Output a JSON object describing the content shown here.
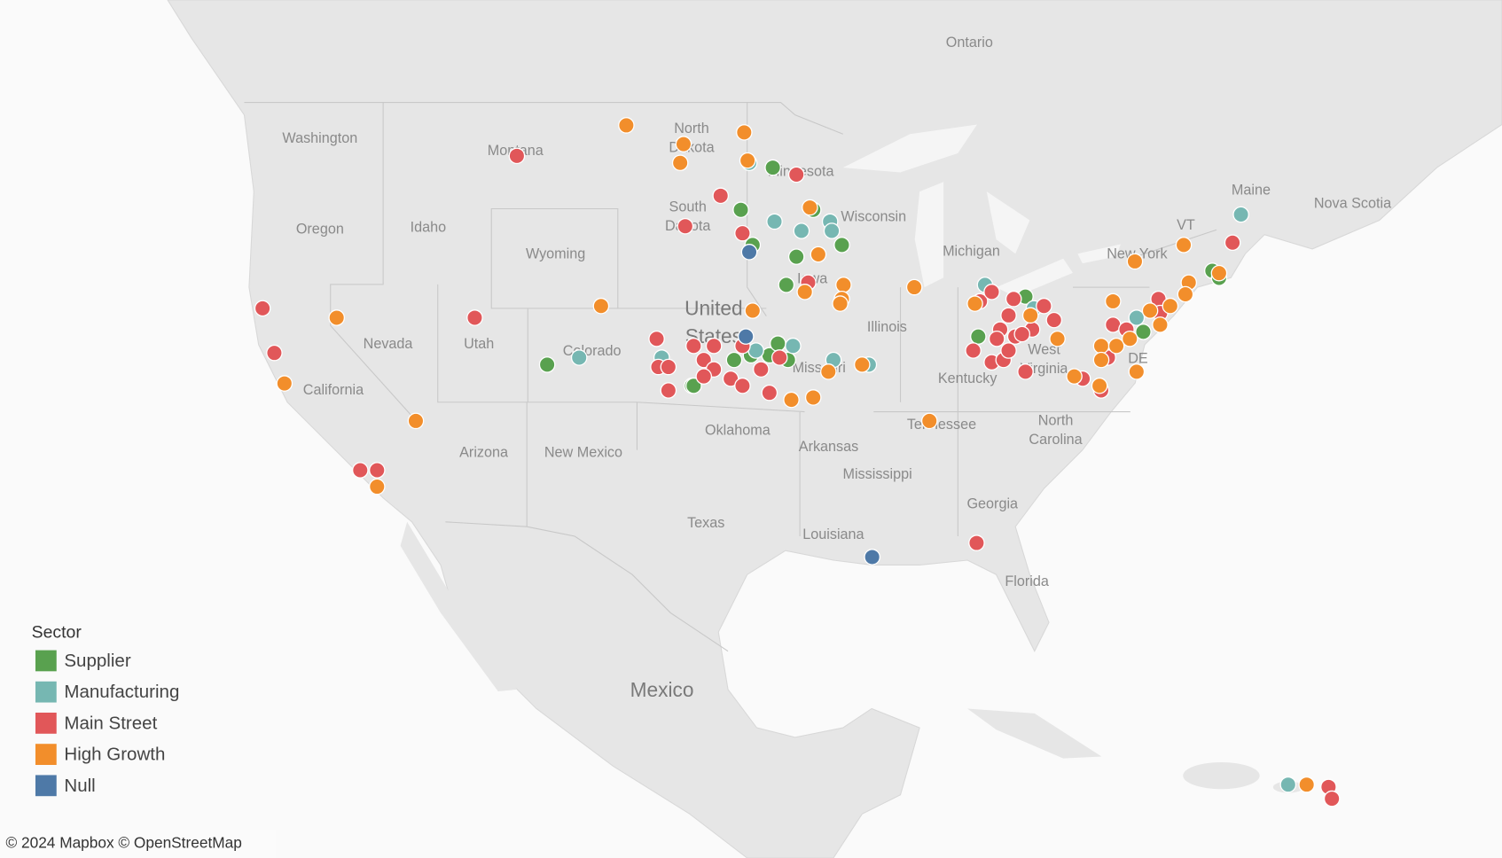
{
  "chart_data": {
    "type": "map",
    "legend_title": "Sector",
    "attribution": "© 2024 Mapbox © OpenStreetMap",
    "map_labels": [
      "Ontario",
      "Washington",
      "Montana",
      "North Dakota",
      "Minnesota",
      "Wisconsin",
      "South Dakota",
      "Oregon",
      "Idaho",
      "Wyoming",
      "Michigan",
      "New York",
      "Maine",
      "Nova Scotia",
      "VT",
      "Iowa",
      "Nevada",
      "Utah",
      "Colorado",
      "United States",
      "Illinois",
      "Missouri",
      "Kentucky",
      "West Virginia",
      "DE",
      "California",
      "Tennessee",
      "North Carolina",
      "Oklahoma",
      "Arkansas",
      "Arizona",
      "New Mexico",
      "Mississippi",
      "Georgia",
      "Texas",
      "Louisiana",
      "Florida",
      "Mexico"
    ],
    "series": [
      {
        "name": "Supplier",
        "color": "#59a14f",
        "lon": [
          -94.5,
          -96.4,
          -95.7,
          -92.1,
          -90.4,
          -93.1,
          -93.7,
          -107.9,
          -96.8,
          -95.8,
          -94.7,
          -94.2,
          -93.6,
          -99.3,
          -79.5,
          -82.3,
          -72.5,
          -68.4,
          -68.0,
          -99.2
        ],
        "lat": [
          47.0,
          45.2,
          43.7,
          45.2,
          43.7,
          43.2,
          42.0,
          38.6,
          38.8,
          39.0,
          39.0,
          39.5,
          38.8,
          37.7,
          41.5,
          39.8,
          40.0,
          42.6,
          42.3,
          37.7
        ]
      },
      {
        "name": "Manufacturing",
        "color": "#76b7b2",
        "lon": [
          -95.9,
          -94.4,
          -92.8,
          -91.1,
          -91.0,
          -106.0,
          -101.1,
          -95.5,
          -93.3,
          -90.9,
          -88.8,
          -81.9,
          -79.0,
          -72.9,
          -66.7,
          -63.9
        ],
        "lat": [
          47.2,
          44.7,
          44.3,
          44.7,
          44.3,
          38.9,
          38.9,
          39.2,
          39.4,
          38.8,
          38.6,
          42.0,
          41.0,
          40.6,
          45.0,
          20.7
        ]
      },
      {
        "name": "Main Street",
        "color": "#e15759",
        "lon": [
          -109.7,
          -93.1,
          -97.6,
          -99.7,
          -96.3,
          -92.4,
          -101.4,
          -101.3,
          -100.7,
          -99.2,
          -98.0,
          -98.6,
          -98.0,
          -98.6,
          -97.0,
          -96.3,
          -95.2,
          -94.1,
          -96.3,
          -100.7,
          -94.7,
          -82.4,
          -124.8,
          -124.1,
          -112.2,
          -119.0,
          -118.0,
          -82.2,
          -81.5,
          -80.2,
          -78.4,
          -80.5,
          -81.0,
          -81.2,
          -80.1,
          -79.1,
          -79.7,
          -82.6,
          -81.5,
          -80.8,
          -80.5,
          -79.5,
          -77.8,
          -76.1,
          -75.0,
          -74.6,
          -74.3,
          -73.5,
          -71.6,
          -71.5,
          -67.2,
          -61.5,
          -61.3
        ],
        "lat": [
          47.5,
          46.7,
          45.8,
          44.5,
          44.2,
          42.1,
          39.7,
          38.5,
          38.5,
          39.4,
          39.4,
          38.8,
          38.4,
          38.1,
          38.0,
          37.7,
          38.4,
          38.9,
          39.4,
          37.5,
          37.4,
          31.0,
          41.0,
          39.1,
          40.6,
          34.1,
          34.1,
          41.3,
          41.7,
          41.4,
          41.1,
          40.7,
          40.1,
          39.7,
          39.8,
          40.1,
          39.9,
          39.2,
          38.7,
          38.8,
          39.2,
          38.3,
          40.5,
          38.0,
          37.5,
          38.9,
          40.3,
          40.1,
          41.4,
          40.8,
          43.8,
          20.6,
          20.1
        ]
      },
      {
        "name": "High Growth",
        "color": "#f28e2b",
        "lon": [
          -103.2,
          -99.8,
          -100.0,
          -96.2,
          -96.0,
          -92.3,
          -91.8,
          -92.6,
          -90.3,
          -90.4,
          -90.5,
          -86.1,
          -104.7,
          -95.7,
          -93.4,
          -92.1,
          -91.2,
          -89.2,
          -85.2,
          -123.5,
          -120.4,
          -115.7,
          -118.0,
          -82.5,
          -79.2,
          -77.6,
          -76.6,
          -75.1,
          -75.0,
          -75.0,
          -74.1,
          -73.3,
          -72.1,
          -71.5,
          -70.9,
          -74.3,
          -72.9,
          -73.0,
          -70.1,
          -69.8,
          -70.0,
          -68.0,
          -62.8
        ],
        "lat": [
          48.8,
          48.0,
          47.2,
          48.5,
          47.3,
          45.3,
          43.3,
          41.7,
          42.0,
          41.4,
          41.2,
          41.9,
          41.1,
          40.9,
          37.1,
          37.2,
          38.3,
          38.6,
          36.2,
          37.8,
          40.6,
          36.2,
          33.4,
          41.2,
          40.7,
          39.7,
          38.1,
          37.7,
          39.4,
          38.8,
          39.4,
          39.7,
          40.9,
          40.3,
          41.1,
          41.3,
          38.3,
          43.0,
          43.7,
          42.1,
          41.6,
          42.5,
          20.7
        ]
      },
      {
        "name": "Null",
        "color": "#4e79a7",
        "lon": [
          -95.9,
          -96.1,
          -88.6
        ],
        "lat": [
          43.4,
          39.8,
          30.4
        ]
      }
    ]
  }
}
